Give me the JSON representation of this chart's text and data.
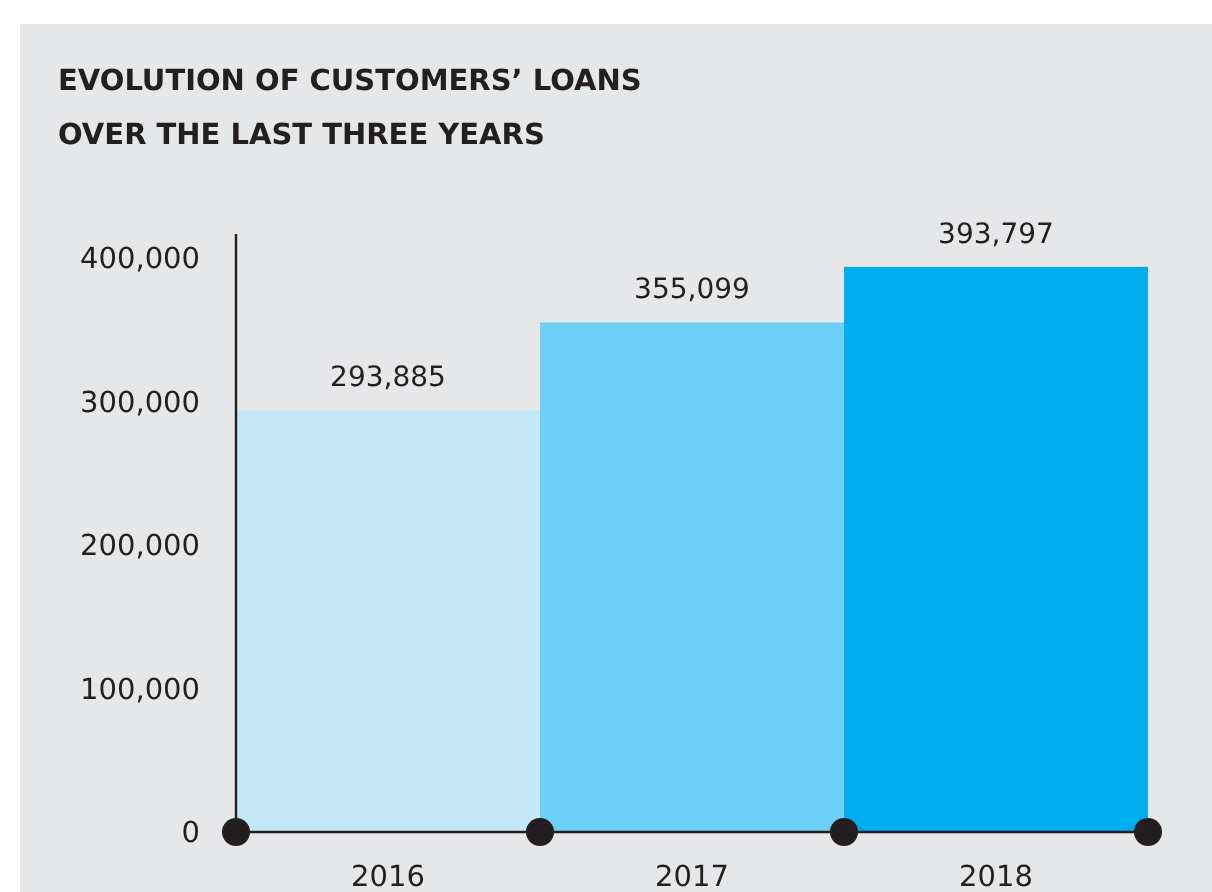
{
  "chart_data": {
    "type": "bar",
    "title": "EVOLUTION OF CUSTOMERS’ LOANS\nOVER THE LAST THREE YEARS",
    "categories": [
      "2016",
      "2017",
      "2018"
    ],
    "values": [
      293885,
      355099,
      393797
    ],
    "colors": [
      "#c5e8f8",
      "#6dcff6",
      "#00aeef"
    ],
    "ylim": [
      0,
      400000
    ],
    "yticks": [
      {
        "value": 0,
        "label": "0"
      },
      {
        "value": 100000,
        "label": "100,000"
      },
      {
        "value": 200000,
        "label": "200,000"
      },
      {
        "value": 300000,
        "label": "300,000"
      },
      {
        "value": 400000,
        "label": "400,000"
      }
    ],
    "value_labels": [
      "293,885",
      "355,099",
      "393,797"
    ],
    "grid": false
  }
}
